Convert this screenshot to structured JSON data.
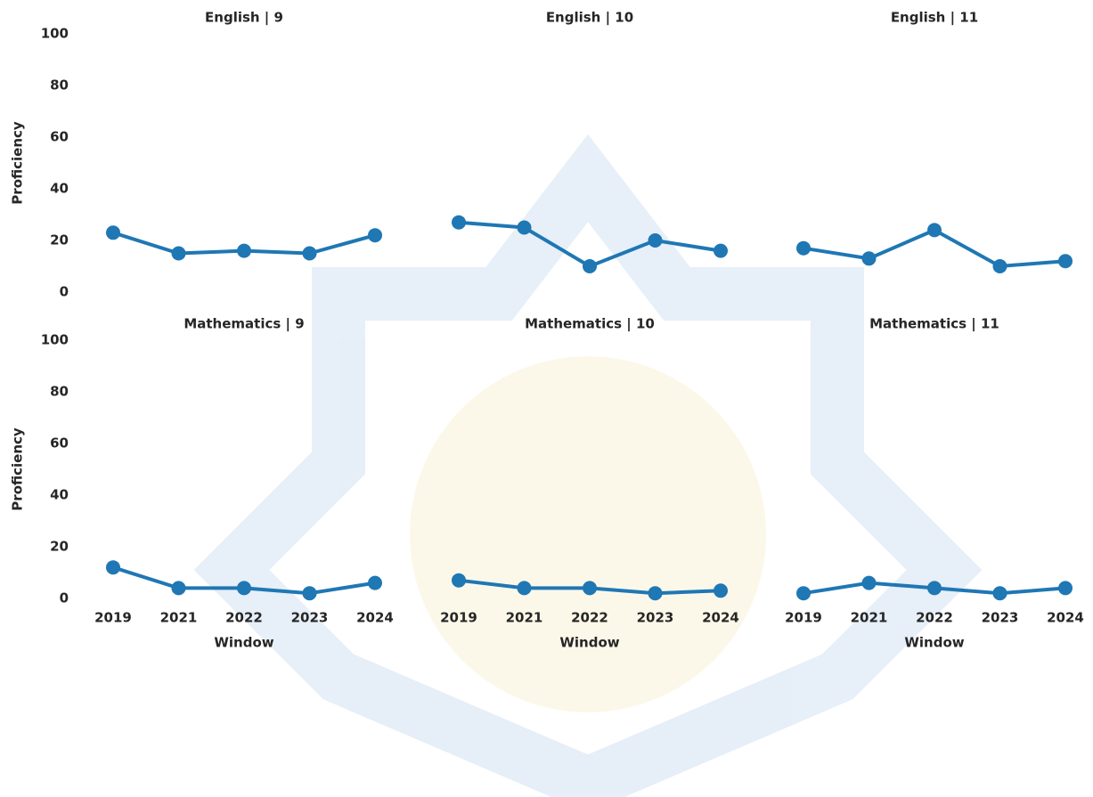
{
  "chart_data": [
    {
      "type": "line",
      "title": "English | 9",
      "ylabel": "Proficiency",
      "categories": [
        null,
        null,
        null,
        null,
        null
      ],
      "values": [
        23,
        15,
        16,
        15,
        22
      ],
      "color": "#1f77b4",
      "ylim": [
        0,
        100
      ],
      "yticks": [
        0,
        20,
        40,
        60,
        80,
        100
      ]
    },
    {
      "type": "line",
      "title": "English | 10",
      "categories": [
        null,
        null,
        null,
        null,
        null
      ],
      "values": [
        27,
        25,
        10,
        20,
        16
      ],
      "color": "#1f77b4",
      "ylim": [
        0,
        100
      ]
    },
    {
      "type": "line",
      "title": "English | 11",
      "categories": [
        null,
        null,
        null,
        null,
        null
      ],
      "values": [
        17,
        13,
        24,
        10,
        12
      ],
      "color": "#1f77b4",
      "ylim": [
        0,
        100
      ]
    },
    {
      "type": "line",
      "title": "Mathematics | 9",
      "ylabel": "Proficiency",
      "xlabel": "Window",
      "categories": [
        "2019",
        "2021",
        "2022",
        "2023",
        "2024"
      ],
      "values": [
        12,
        4,
        4,
        2,
        6
      ],
      "color": "#1f77b4",
      "ylim": [
        0,
        100
      ],
      "yticks": [
        0,
        20,
        40,
        60,
        80,
        100
      ]
    },
    {
      "type": "line",
      "title": "Mathematics | 10",
      "xlabel": "Window",
      "categories": [
        "2019",
        "2021",
        "2022",
        "2023",
        "2024"
      ],
      "values": [
        7,
        4,
        4,
        2,
        3
      ],
      "color": "#1f77b4",
      "ylim": [
        0,
        100
      ]
    },
    {
      "type": "line",
      "title": "Mathematics | 11",
      "xlabel": "Window",
      "categories": [
        "2019",
        "2021",
        "2022",
        "2023",
        "2024"
      ],
      "values": [
        2,
        6,
        4,
        2,
        4
      ],
      "color": "#1f77b4",
      "ylim": [
        0,
        100
      ]
    }
  ]
}
